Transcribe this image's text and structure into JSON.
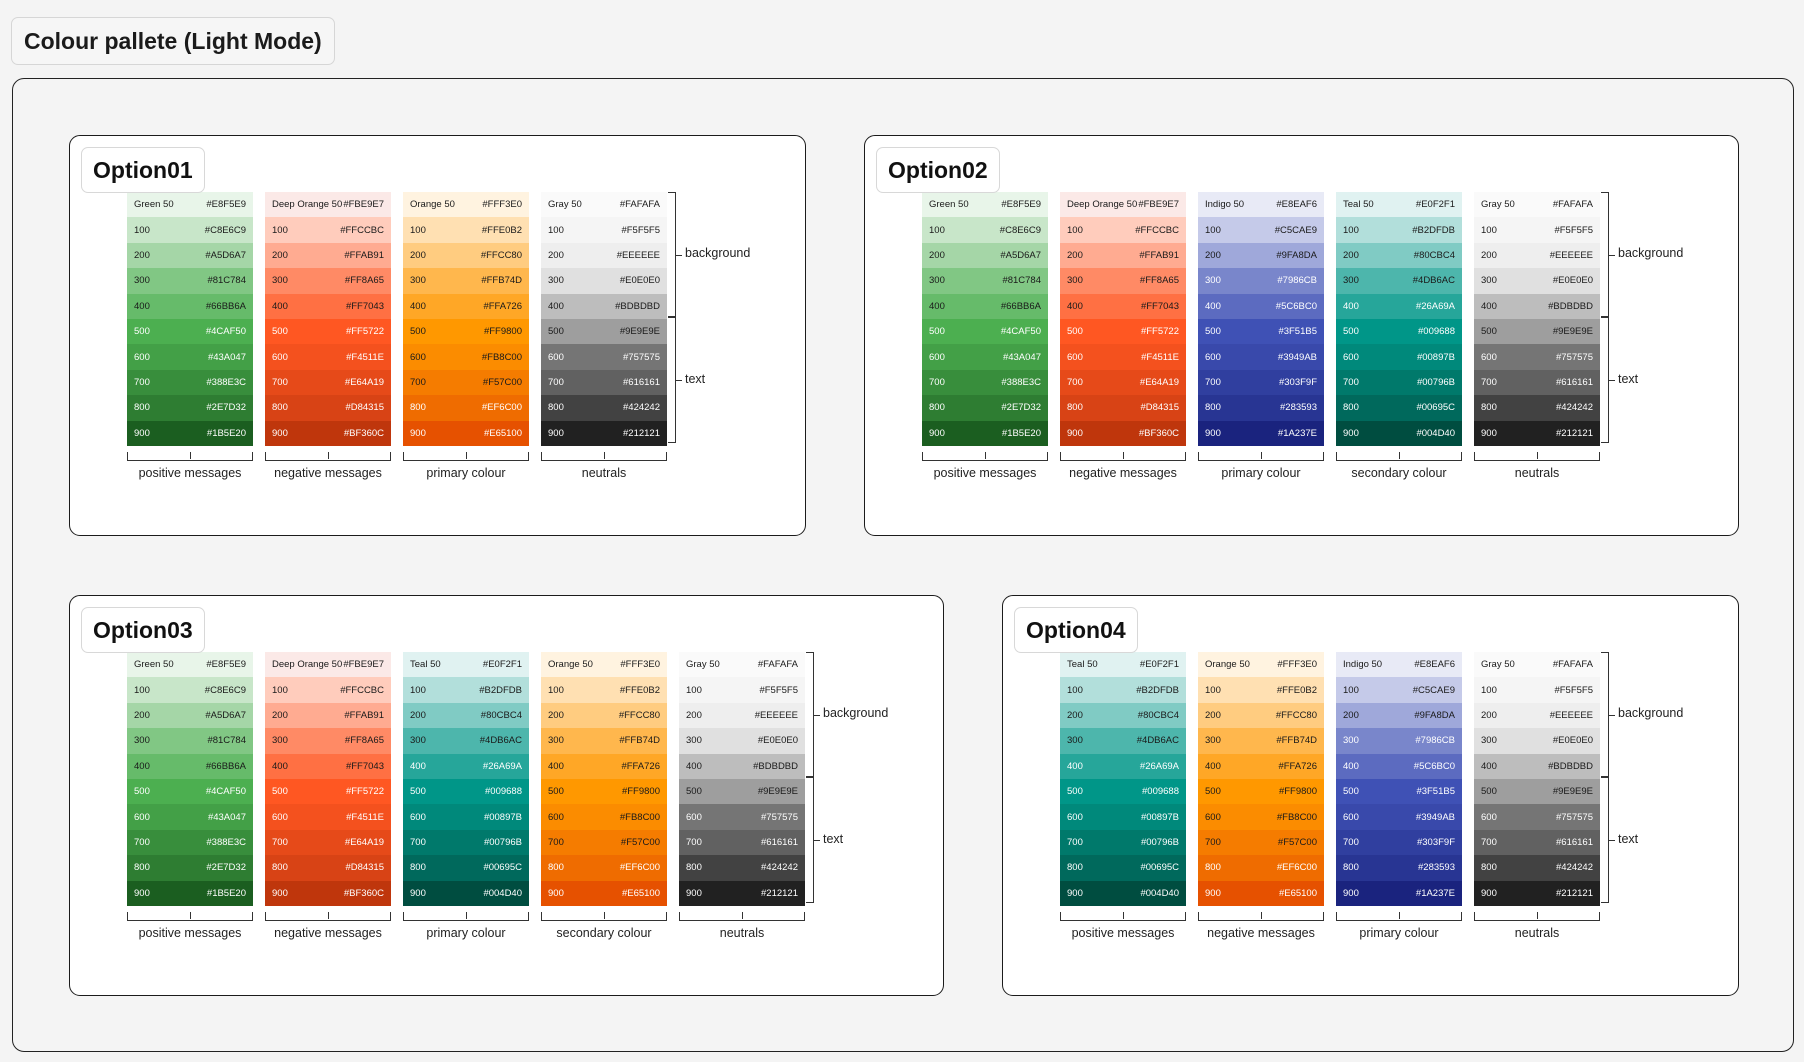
{
  "page": {
    "title": "Colour pallete (Light Mode)"
  },
  "options": [
    {
      "label": "Option01",
      "columns": [
        {
          "label": "positive messages",
          "first_name": "Green 50",
          "swatches": [
            "#E8F5E9",
            "#C8E6C9",
            "#A5D6A7",
            "#81C784",
            "#66BB6A",
            "#4CAF50",
            "#43A047",
            "#388E3C",
            "#2E7D32",
            "#1B5E20"
          ]
        },
        {
          "label": "negative messages",
          "first_name": "Deep Orange 50",
          "swatches": [
            "#FBE9E7",
            "#FFCCBC",
            "#FFAB91",
            "#FF8A65",
            "#FF7043",
            "#FF5722",
            "#F4511E",
            "#E64A19",
            "#D84315",
            "#BF360C"
          ]
        },
        {
          "label": "primary colour",
          "first_name": "Orange 50",
          "swatches": [
            "#FFF3E0",
            "#FFE0B2",
            "#FFCC80",
            "#FFB74D",
            "#FFA726",
            "#FF9800",
            "#FB8C00",
            "#F57C00",
            "#EF6C00",
            "#E65100"
          ]
        },
        {
          "label": "neutrals",
          "first_name": "Gray 50",
          "swatches": [
            "#FAFAFA",
            "#F5F5F5",
            "#EEEEEE",
            "#E0E0E0",
            "#BDBDBD",
            "#9E9E9E",
            "#757575",
            "#616161",
            "#424242",
            "#212121"
          ]
        }
      ]
    },
    {
      "label": "Option02",
      "columns": [
        {
          "label": "positive messages",
          "first_name": "Green 50",
          "swatches": [
            "#E8F5E9",
            "#C8E6C9",
            "#A5D6A7",
            "#81C784",
            "#66BB6A",
            "#4CAF50",
            "#43A047",
            "#388E3C",
            "#2E7D32",
            "#1B5E20"
          ]
        },
        {
          "label": "negative messages",
          "first_name": "Deep Orange 50",
          "swatches": [
            "#FBE9E7",
            "#FFCCBC",
            "#FFAB91",
            "#FF8A65",
            "#FF7043",
            "#FF5722",
            "#F4511E",
            "#E64A19",
            "#D84315",
            "#BF360C"
          ]
        },
        {
          "label": "primary colour",
          "first_name": "Indigo 50",
          "swatches": [
            "#E8EAF6",
            "#C5CAE9",
            "#9FA8DA",
            "#7986CB",
            "#5C6BC0",
            "#3F51B5",
            "#3949AB",
            "#303F9F",
            "#283593",
            "#1A237E"
          ]
        },
        {
          "label": "secondary colour",
          "first_name": "Teal 50",
          "swatches": [
            "#E0F2F1",
            "#B2DFDB",
            "#80CBC4",
            "#4DB6AC",
            "#26A69A",
            "#009688",
            "#00897B",
            "#00796B",
            "#00695C",
            "#004D40"
          ]
        },
        {
          "label": "neutrals",
          "first_name": "Gray 50",
          "swatches": [
            "#FAFAFA",
            "#F5F5F5",
            "#EEEEEE",
            "#E0E0E0",
            "#BDBDBD",
            "#9E9E9E",
            "#757575",
            "#616161",
            "#424242",
            "#212121"
          ]
        }
      ]
    },
    {
      "label": "Option03",
      "columns": [
        {
          "label": "positive messages",
          "first_name": "Green 50",
          "swatches": [
            "#E8F5E9",
            "#C8E6C9",
            "#A5D6A7",
            "#81C784",
            "#66BB6A",
            "#4CAF50",
            "#43A047",
            "#388E3C",
            "#2E7D32",
            "#1B5E20"
          ]
        },
        {
          "label": "negative messages",
          "first_name": "Deep Orange 50",
          "swatches": [
            "#FBE9E7",
            "#FFCCBC",
            "#FFAB91",
            "#FF8A65",
            "#FF7043",
            "#FF5722",
            "#F4511E",
            "#E64A19",
            "#D84315",
            "#BF360C"
          ]
        },
        {
          "label": "primary colour",
          "first_name": "Teal 50",
          "swatches": [
            "#E0F2F1",
            "#B2DFDB",
            "#80CBC4",
            "#4DB6AC",
            "#26A69A",
            "#009688",
            "#00897B",
            "#00796B",
            "#00695C",
            "#004D40"
          ]
        },
        {
          "label": "secondary colour",
          "first_name": "Orange 50",
          "swatches": [
            "#FFF3E0",
            "#FFE0B2",
            "#FFCC80",
            "#FFB74D",
            "#FFA726",
            "#FF9800",
            "#FB8C00",
            "#F57C00",
            "#EF6C00",
            "#E65100"
          ]
        },
        {
          "label": "neutrals",
          "first_name": "Gray 50",
          "swatches": [
            "#FAFAFA",
            "#F5F5F5",
            "#EEEEEE",
            "#E0E0E0",
            "#BDBDBD",
            "#9E9E9E",
            "#757575",
            "#616161",
            "#424242",
            "#212121"
          ]
        }
      ]
    },
    {
      "label": "Option04",
      "columns": [
        {
          "label": "positive messages",
          "first_name": "Teal 50",
          "swatches": [
            "#E0F2F1",
            "#B2DFDB",
            "#80CBC4",
            "#4DB6AC",
            "#26A69A",
            "#009688",
            "#00897B",
            "#00796B",
            "#00695C",
            "#004D40"
          ]
        },
        {
          "label": "negative messages",
          "first_name": "Orange 50",
          "swatches": [
            "#FFF3E0",
            "#FFE0B2",
            "#FFCC80",
            "#FFB74D",
            "#FFA726",
            "#FF9800",
            "#FB8C00",
            "#F57C00",
            "#EF6C00",
            "#E65100"
          ]
        },
        {
          "label": "primary colour",
          "first_name": "Indigo 50",
          "swatches": [
            "#E8EAF6",
            "#C5CAE9",
            "#9FA8DA",
            "#7986CB",
            "#5C6BC0",
            "#3F51B5",
            "#3949AB",
            "#303F9F",
            "#283593",
            "#1A237E"
          ]
        },
        {
          "label": "neutrals",
          "first_name": "Gray 50",
          "swatches": [
            "#FAFAFA",
            "#F5F5F5",
            "#EEEEEE",
            "#E0E0E0",
            "#BDBDBD",
            "#9E9E9E",
            "#757575",
            "#616161",
            "#424242",
            "#212121"
          ]
        }
      ]
    }
  ],
  "shade_names": [
    "100",
    "200",
    "300",
    "400",
    "500",
    "600",
    "700",
    "800",
    "900"
  ],
  "side_labels": {
    "background": "background",
    "text": "text"
  }
}
